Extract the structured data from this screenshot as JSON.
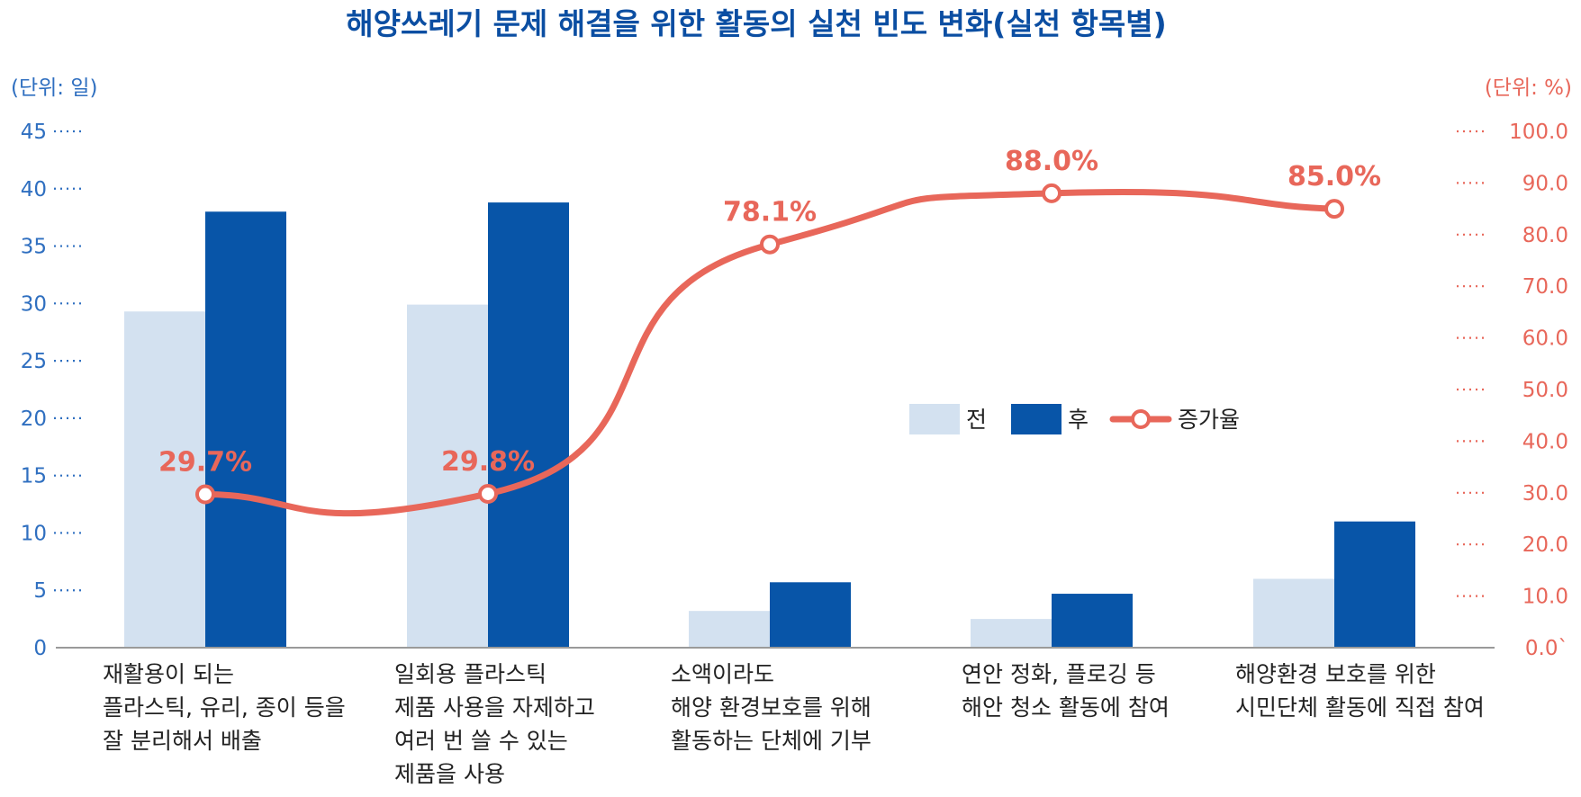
{
  "chart_data": {
    "type": "bar",
    "title": "해양쓰레기 문제 해결을 위한 활동의 실천 빈도 변화(실천 항목별)",
    "left_axis": {
      "unit_label": "(단위: 일)",
      "ylim": [
        0,
        45
      ],
      "ticks": [
        "0",
        "5",
        "10",
        "15",
        "20",
        "25",
        "30",
        "35",
        "40",
        "45"
      ]
    },
    "right_axis": {
      "unit_label": "(단위: %)",
      "ylim": [
        0,
        100
      ],
      "ticks": [
        "0.0`",
        "10.0",
        "20.0",
        "30.0",
        "40.0",
        "50.0",
        "60.0",
        "70.0",
        "80.0",
        "90.0",
        "100.0"
      ]
    },
    "categories": [
      [
        "재활용이 되는",
        "플라스틱, 유리, 종이 등을",
        "잘 분리해서 배출"
      ],
      [
        "일회용 플라스틱",
        "제품 사용을 자제하고",
        "여러 번 쓸 수 있는",
        "제품을 사용"
      ],
      [
        "소액이라도",
        "해양 환경보호를 위해",
        "활동하는 단체에 기부"
      ],
      [
        "연안 정화, 플로깅 등",
        "해안 청소 활동에 참여"
      ],
      [
        "해양환경 보호를 위한",
        "시민단체 활동에 직접 참여"
      ]
    ],
    "series": [
      {
        "name": "전",
        "type": "bar",
        "axis": "left",
        "color": "#d3e1f0",
        "values": [
          29.3,
          29.9,
          3.2,
          2.5,
          6.0
        ]
      },
      {
        "name": "후",
        "type": "bar",
        "axis": "left",
        "color": "#0855a8",
        "values": [
          38.0,
          38.8,
          5.7,
          4.7,
          11.0
        ]
      },
      {
        "name": "증가율",
        "type": "line",
        "axis": "right",
        "color": "#e8675a",
        "values": [
          29.7,
          29.8,
          78.1,
          88.0,
          85.0
        ],
        "labels": [
          "29.7%",
          "29.8%",
          "78.1%",
          "88.0%",
          "85.0%"
        ]
      }
    ],
    "legend": {
      "placement": "center-right",
      "items": [
        "전",
        "후",
        "증가율"
      ]
    },
    "grid": false
  }
}
